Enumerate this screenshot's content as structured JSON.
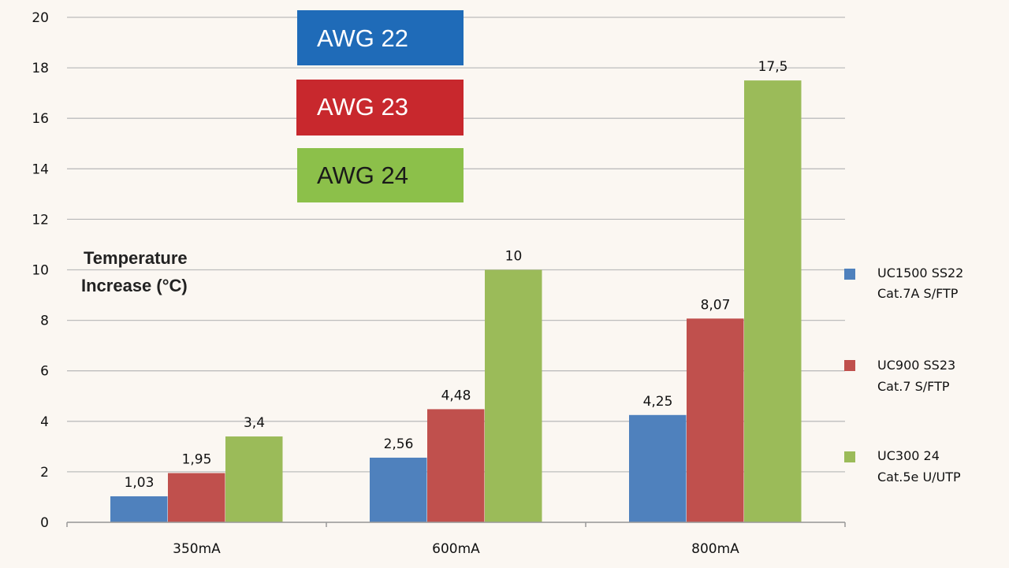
{
  "chart_data": {
    "type": "bar",
    "title": "",
    "xlabel": "",
    "ylabel": [
      "Temperature",
      "Increase (°C)"
    ],
    "ylim": [
      0,
      20
    ],
    "yticks": [
      0,
      2,
      4,
      6,
      8,
      10,
      12,
      14,
      16,
      18,
      20
    ],
    "grid": true,
    "categories": [
      "350mA",
      "600mA",
      "800mA"
    ],
    "series": [
      {
        "name": "UC1500 SS22",
        "sub": "Cat.7A S/FTP",
        "color": "#4f81bd",
        "values": [
          1.03,
          2.56,
          4.25
        ],
        "labels": [
          "1,03",
          "2,56",
          "4,25"
        ]
      },
      {
        "name": "UC900 SS23",
        "sub": "Cat.7 S/FTP",
        "color": "#c0504d",
        "values": [
          1.95,
          4.48,
          8.07
        ],
        "labels": [
          "1,95",
          "4,48",
          "8,07"
        ]
      },
      {
        "name": "UC300 24",
        "sub": "Cat.5e U/UTP",
        "color": "#9bbb59",
        "values": [
          3.4,
          10,
          17.5
        ],
        "labels": [
          "3,4",
          "10",
          "17,5"
        ]
      }
    ],
    "legend_position": "right",
    "annotations": [
      {
        "text": "AWG 22",
        "color": "#1f6bb8",
        "text_color": "#ffffff"
      },
      {
        "text": "AWG 23",
        "color": "#c8282d",
        "text_color": "#ffffff"
      },
      {
        "text": "AWG 24",
        "color": "#8cc04a",
        "text_color": "#1a1a1a"
      }
    ]
  }
}
